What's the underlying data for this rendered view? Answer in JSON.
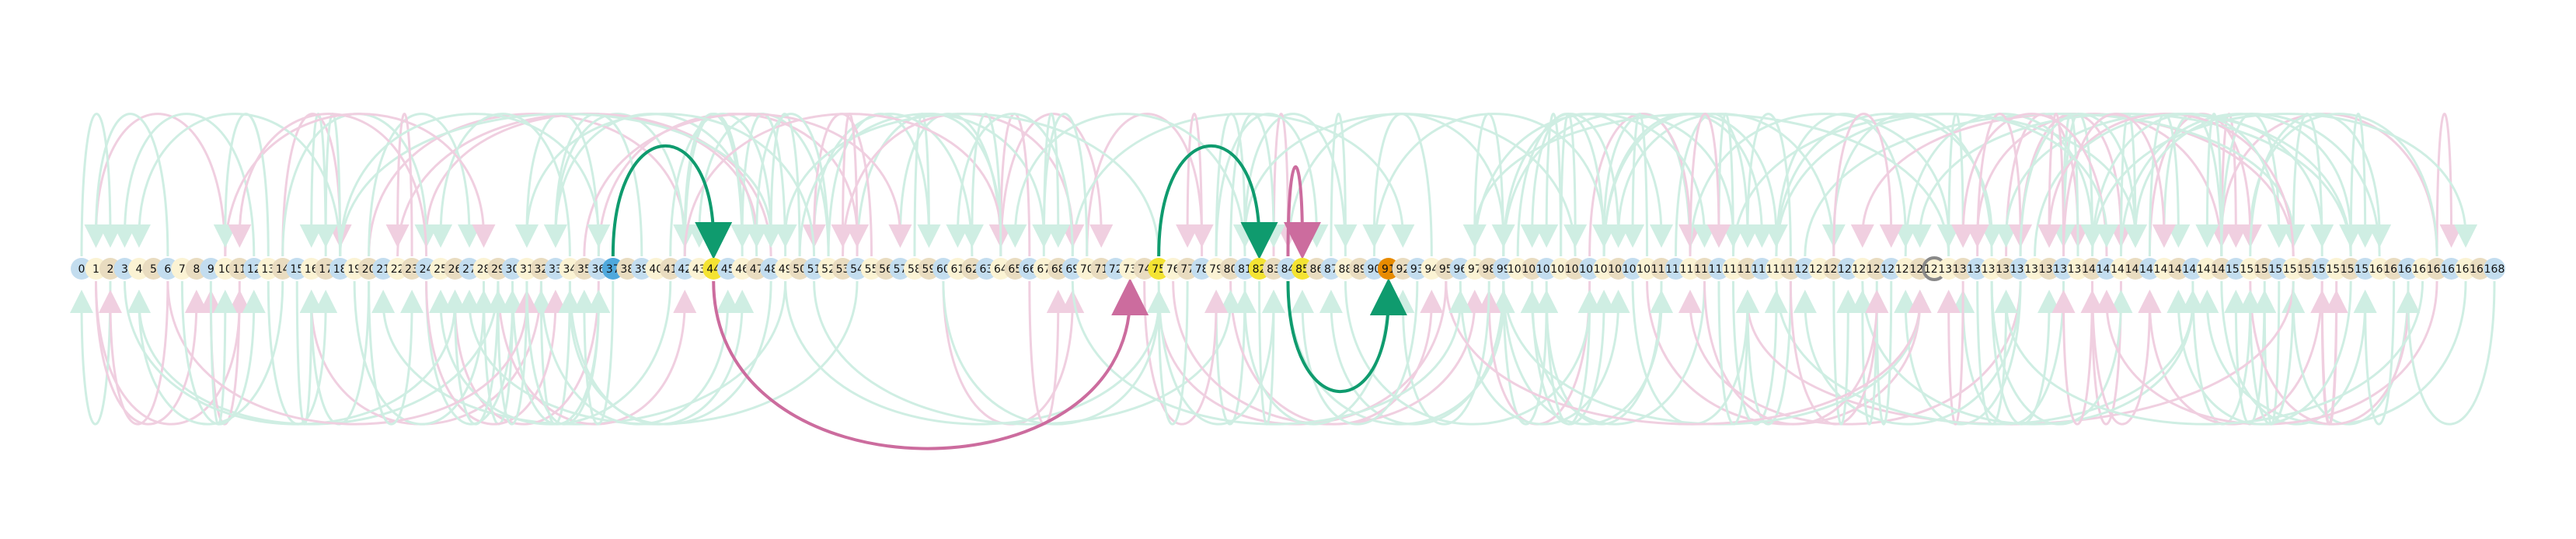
{
  "diagram": {
    "type": "arc-diagram",
    "node_labels": [
      "0",
      "1",
      "2",
      "3",
      "4",
      "5",
      "6",
      "7",
      "8",
      "9",
      "10",
      "11",
      "12",
      "13",
      "14",
      "15",
      "16",
      "17",
      "18",
      "19",
      "20",
      "21",
      "22",
      "23",
      "24",
      "25",
      "26",
      "27",
      "28",
      "29",
      "30",
      "31",
      "32",
      "33",
      "34",
      "35",
      "36",
      "37",
      "38",
      "39",
      "40",
      "41",
      "42",
      "43",
      "44",
      "45",
      "46",
      "47",
      "48",
      "49",
      "50",
      "51",
      "52",
      "53",
      "54",
      "55",
      "56",
      "57",
      "58",
      "59",
      "60",
      "61",
      "62",
      "63",
      "64",
      "65",
      "66",
      "67",
      "68",
      "69",
      "70",
      "71",
      "72",
      "73",
      "74",
      "75",
      "76",
      "77",
      "78",
      "79",
      "80",
      "81",
      "82",
      "83",
      "84",
      "85",
      "86",
      "87",
      "88",
      "89",
      "90",
      "91",
      "92",
      "93",
      "94",
      "95",
      "96",
      "97",
      "98",
      "99",
      "100",
      "101",
      "102",
      "103",
      "104",
      "105",
      "106",
      "107",
      "108",
      "109",
      "110",
      "111",
      "112",
      "113",
      "114",
      "115",
      "116",
      "117",
      "118",
      "119",
      "120",
      "121",
      "122",
      "123",
      "124",
      "125",
      "126",
      "127",
      "128",
      "129",
      "130",
      "131",
      "132",
      "133",
      "134",
      "135",
      "136",
      "137",
      "138",
      "139",
      "140",
      "141",
      "142",
      "143",
      "144",
      "145",
      "146",
      "147",
      "148",
      "149",
      "150",
      "151",
      "152",
      "153",
      "154",
      "155",
      "156",
      "157",
      "158",
      "159",
      "160",
      "161",
      "162",
      "163",
      "164",
      "165",
      "166",
      "167",
      "168"
    ],
    "colors": {
      "node_blue": "#c3ddef",
      "node_cream": "#fbf3d4",
      "node_tan": "#e9dcc0",
      "node_bright_blue": "#4fa8dc",
      "node_yellow": "#f4e332",
      "node_orange": "#e88b00",
      "node_gray_ring": "#888888",
      "arc_green_faint": "#cfeee3",
      "arc_pink_faint": "#f0cfe0",
      "arc_green": "#0f9b6e",
      "arc_pink": "#cc6c9e"
    },
    "highlighted_arcs": [
      {
        "from": 37,
        "to": 44,
        "color": "green",
        "direction": "above"
      },
      {
        "from": 75,
        "to": 82,
        "color": "green",
        "direction": "above"
      },
      {
        "from": 84,
        "to": 85,
        "color": "pink",
        "direction": "above"
      },
      {
        "from": 44,
        "to": 73,
        "color": "pink",
        "direction": "below"
      },
      {
        "from": 84,
        "to": 91,
        "color": "green",
        "direction": "below"
      }
    ],
    "node_color_overrides": {
      "37": "bright_blue",
      "44": "yellow",
      "75": "yellow",
      "82": "yellow",
      "85": "yellow",
      "91": "orange",
      "129": "gray_ring"
    }
  }
}
